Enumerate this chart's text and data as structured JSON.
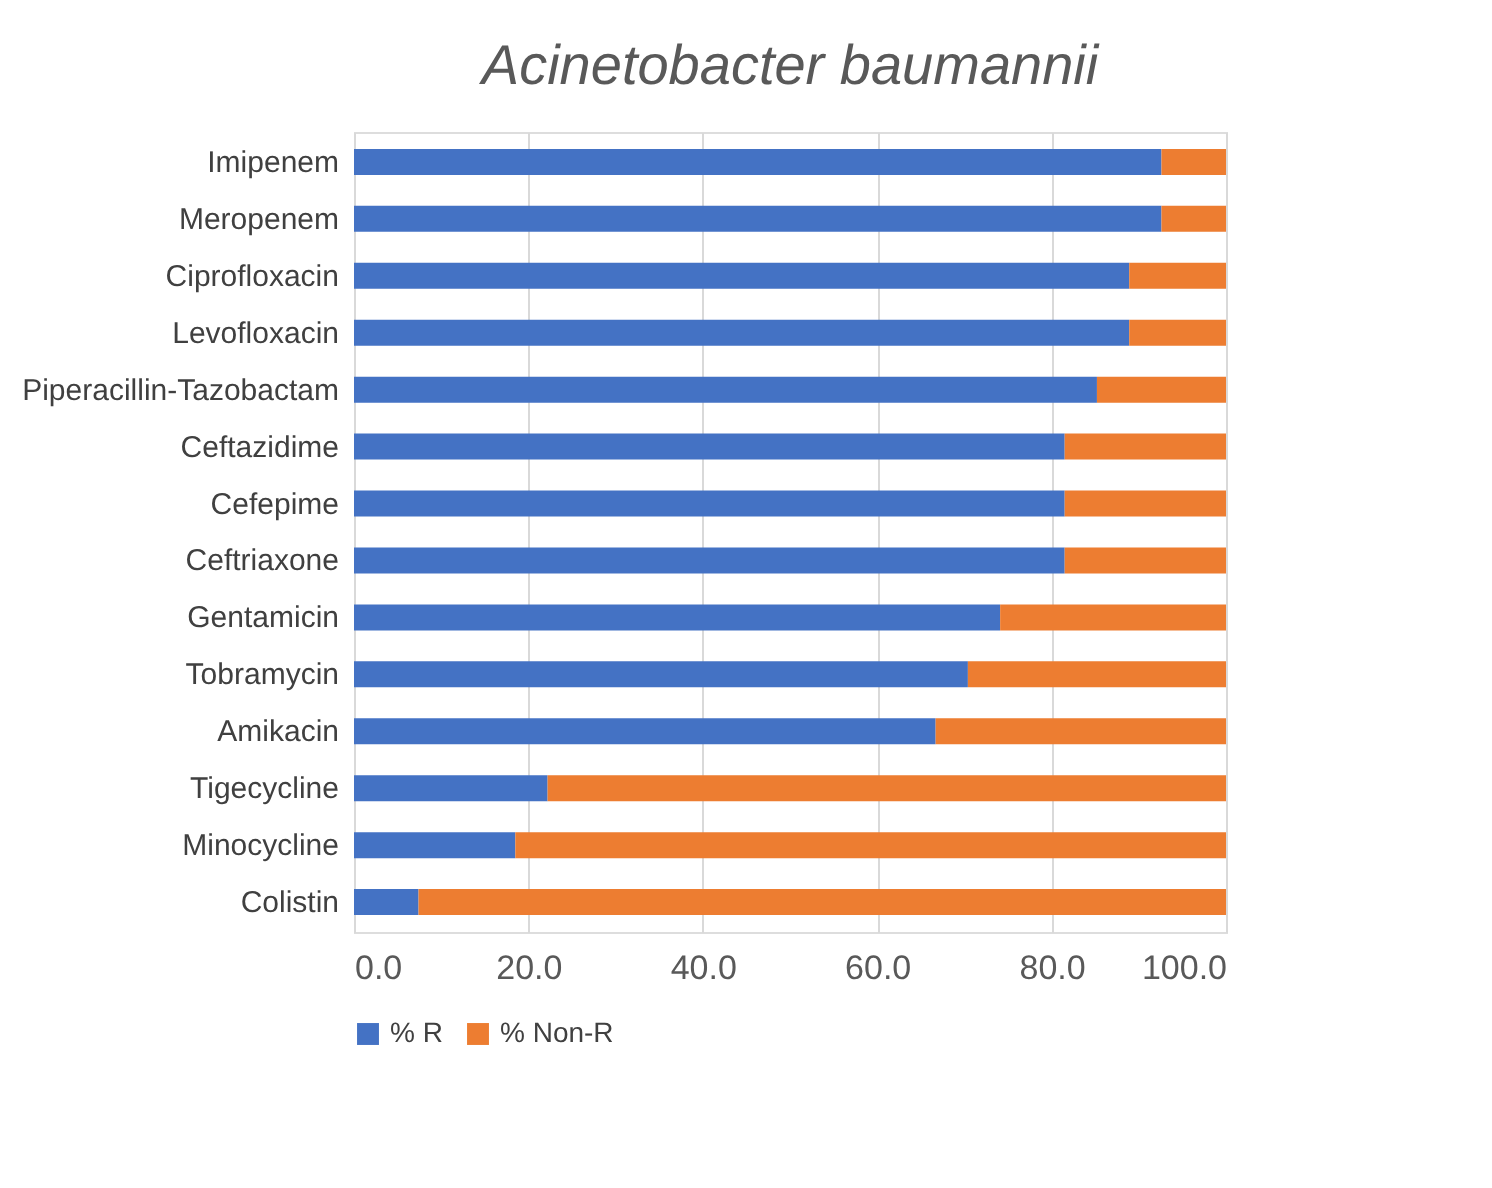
{
  "chart_data": {
    "type": "bar",
    "orientation": "horizontal",
    "stacked": true,
    "title": "Acinetobacter baumannii",
    "categories": [
      "Imipenem",
      "Meropenem",
      "Ciprofloxacin",
      "Levofloxacin",
      "Piperacillin-Tazobactam",
      "Ceftazidime",
      "Cefepime",
      "Ceftriaxone",
      "Gentamicin",
      "Tobramycin",
      "Amikacin",
      "Tigecycline",
      "Minocycline",
      "Colistin"
    ],
    "series": [
      {
        "name": "% R",
        "color": "#4472c4",
        "values": [
          92.6,
          92.6,
          88.9,
          88.9,
          85.2,
          81.5,
          81.5,
          81.5,
          74.1,
          70.4,
          66.7,
          22.2,
          18.5,
          7.4
        ]
      },
      {
        "name": "% Non-R",
        "color": "#ed7d31",
        "values": [
          7.4,
          7.4,
          11.1,
          11.1,
          14.8,
          18.5,
          18.5,
          18.5,
          25.9,
          29.6,
          33.3,
          77.8,
          81.5,
          92.6
        ]
      }
    ],
    "xlim": [
      0,
      100
    ],
    "xticks": [
      {
        "value": 0,
        "label": "0.0"
      },
      {
        "value": 20,
        "label": "20.0"
      },
      {
        "value": 40,
        "label": "40.0"
      },
      {
        "value": 60,
        "label": "60.0"
      },
      {
        "value": 80,
        "label": "80.0"
      },
      {
        "value": 100,
        "label": "100.0"
      }
    ],
    "grid": "x",
    "legend": "bottom"
  }
}
